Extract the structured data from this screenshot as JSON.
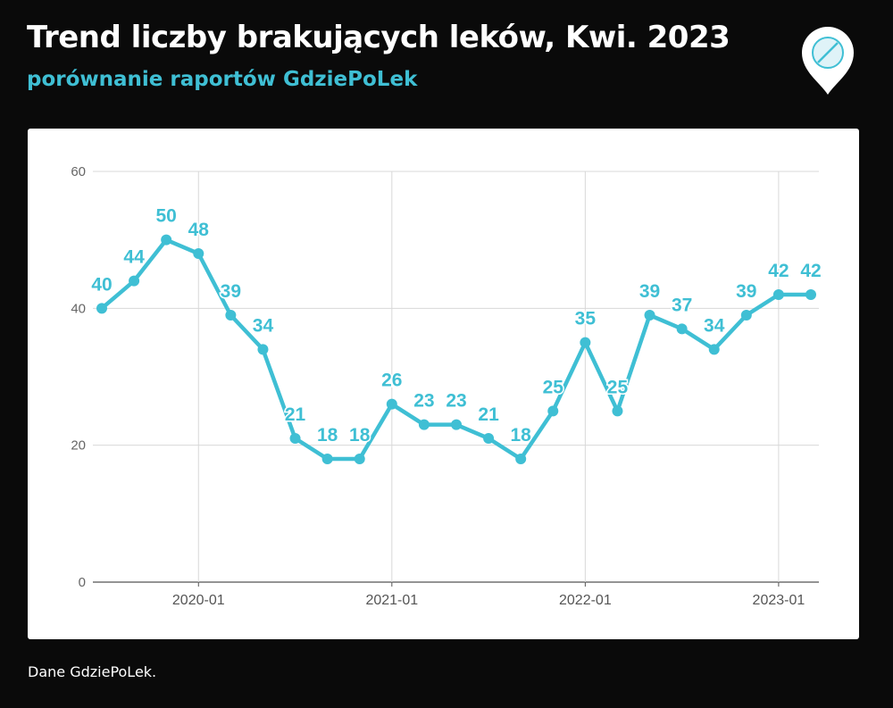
{
  "header": {
    "title": "Trend liczby brakujących leków, Kwi. 2023",
    "subtitle": "porównanie raportów GdziePoLek"
  },
  "logo": {
    "icon": "pill-location-pin-icon"
  },
  "footer": {
    "source": "Dane GdziePoLek."
  },
  "colors": {
    "background": "#0a0a0a",
    "panel": "#ffffff",
    "accent": "#3fbfd4",
    "grid": "#d8d8d8"
  },
  "chart_data": {
    "type": "line",
    "x": [
      "2019-07",
      "2019-09",
      "2019-11",
      "2020-01",
      "2020-03",
      "2020-05",
      "2020-07",
      "2020-09",
      "2020-11",
      "2021-01",
      "2021-03",
      "2021-05",
      "2021-07",
      "2021-09",
      "2021-11",
      "2022-01",
      "2022-03",
      "2022-05",
      "2022-07",
      "2022-09",
      "2022-11",
      "2023-01",
      "2023-03"
    ],
    "series": [
      {
        "values": [
          40,
          44,
          50,
          48,
          39,
          34,
          21,
          18,
          18,
          26,
          23,
          23,
          21,
          18,
          25,
          35,
          25,
          39,
          37,
          34,
          39,
          42,
          42
        ]
      }
    ],
    "data_labels": true,
    "x_tick_labels": [
      "2020-01",
      "2021-01",
      "2022-01",
      "2023-01"
    ],
    "y_ticks": [
      0,
      20,
      40,
      60
    ],
    "ylim": [
      0,
      60
    ],
    "grid": true,
    "xlabel": "",
    "ylabel": ""
  }
}
